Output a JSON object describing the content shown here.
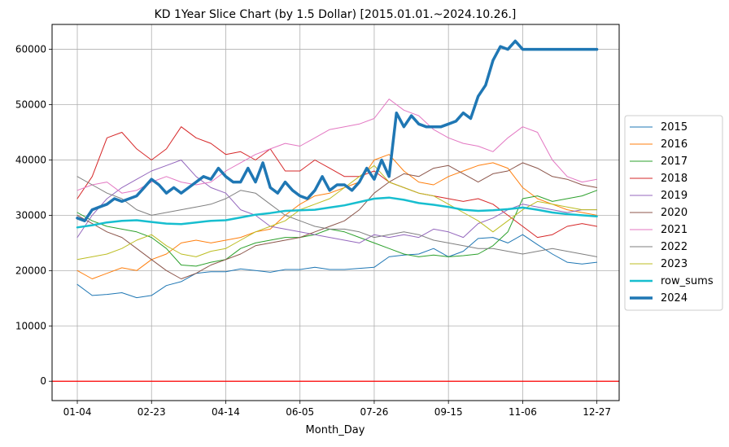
{
  "chart_data": {
    "type": "line",
    "title": "KD 1Year Slice Chart (by 1.5 Dollar) [2015.01.01.~2024.10.26.]",
    "xlabel": "Month_Day",
    "ylabel": "",
    "x_ticks": [
      "01-04",
      "02-23",
      "04-14",
      "06-05",
      "07-26",
      "09-15",
      "11-06",
      "12-27"
    ],
    "x_tick_positions": [
      0,
      50,
      100,
      150,
      200,
      250,
      300,
      350
    ],
    "xlim": [
      -17,
      365
    ],
    "ylim": [
      -3500,
      64500
    ],
    "y_ticks": [
      0,
      10000,
      20000,
      30000,
      40000,
      50000,
      60000
    ],
    "grid": true,
    "legend_position": "center-right",
    "reference_line": {
      "y": 0,
      "color": "#ff0000"
    },
    "series": [
      {
        "name": "2015",
        "color": "#1f77b4",
        "width": 1,
        "x": [
          0,
          10,
          20,
          30,
          40,
          50,
          60,
          70,
          80,
          90,
          100,
          110,
          120,
          130,
          140,
          150,
          160,
          170,
          180,
          190,
          200,
          210,
          220,
          230,
          240,
          250,
          260,
          270,
          280,
          290,
          300,
          310,
          320,
          330,
          340,
          350
        ],
        "values": [
          17500,
          15500,
          15700,
          16000,
          15100,
          15500,
          17300,
          18000,
          19500,
          19800,
          19800,
          20300,
          20000,
          19700,
          20200,
          20200,
          20600,
          20200,
          20200,
          20400,
          20600,
          22500,
          22800,
          23000,
          24000,
          22500,
          23500,
          25800,
          26000,
          25000,
          26500,
          24700,
          23000,
          21500,
          21200,
          21500
        ]
      },
      {
        "name": "2016",
        "color": "#ff7f0e",
        "width": 1,
        "x": [
          0,
          10,
          20,
          30,
          40,
          50,
          60,
          70,
          80,
          90,
          100,
          110,
          120,
          130,
          140,
          150,
          160,
          170,
          180,
          190,
          200,
          210,
          220,
          230,
          240,
          250,
          260,
          270,
          280,
          290,
          300,
          310,
          320,
          330,
          340,
          350
        ],
        "values": [
          20000,
          18500,
          19500,
          20500,
          20000,
          22000,
          23000,
          25000,
          25500,
          25000,
          25500,
          26000,
          27000,
          27500,
          30000,
          32000,
          33500,
          34000,
          35000,
          36000,
          40000,
          41000,
          38000,
          36000,
          35500,
          37000,
          38000,
          39000,
          39500,
          38500,
          35000,
          33000,
          32000,
          31000,
          30500,
          30000
        ]
      },
      {
        "name": "2017",
        "color": "#2ca02c",
        "width": 1,
        "x": [
          0,
          10,
          20,
          30,
          40,
          50,
          60,
          70,
          80,
          90,
          100,
          110,
          120,
          130,
          140,
          150,
          160,
          170,
          180,
          190,
          200,
          210,
          220,
          230,
          240,
          250,
          260,
          270,
          280,
          290,
          300,
          310,
          320,
          330,
          340,
          350
        ],
        "values": [
          30500,
          29000,
          28000,
          27500,
          27000,
          26000,
          24000,
          21000,
          20800,
          21500,
          22000,
          24000,
          25000,
          25500,
          26000,
          26000,
          26500,
          27500,
          27000,
          26000,
          25000,
          24000,
          23000,
          22500,
          22800,
          22500,
          22700,
          23000,
          24500,
          27000,
          33000,
          33500,
          32500,
          33000,
          33500,
          34500
        ]
      },
      {
        "name": "2018",
        "color": "#d62728",
        "width": 1,
        "x": [
          0,
          10,
          20,
          30,
          40,
          50,
          60,
          70,
          80,
          90,
          100,
          110,
          120,
          130,
          140,
          150,
          160,
          170,
          180,
          190,
          200,
          210,
          220,
          230,
          240,
          250,
          260,
          270,
          280,
          290,
          300,
          310,
          320,
          330,
          340,
          350
        ],
        "values": [
          33000,
          37000,
          44000,
          45000,
          42000,
          40000,
          42000,
          46000,
          44000,
          43000,
          41000,
          41500,
          40000,
          42000,
          38000,
          38000,
          40000,
          38500,
          37000,
          37000,
          38000,
          36000,
          35000,
          34000,
          33500,
          33000,
          32500,
          33000,
          32000,
          30000,
          28000,
          26000,
          26500,
          28000,
          28500,
          28000
        ]
      },
      {
        "name": "2019",
        "color": "#9467bd",
        "width": 1,
        "x": [
          0,
          10,
          20,
          30,
          40,
          50,
          60,
          70,
          80,
          90,
          100,
          110,
          120,
          130,
          140,
          150,
          160,
          170,
          180,
          190,
          200,
          210,
          220,
          230,
          240,
          250,
          260,
          270,
          280,
          290,
          300,
          310,
          320,
          330,
          340,
          350
        ],
        "values": [
          26000,
          30000,
          33000,
          35000,
          36500,
          38000,
          39000,
          40000,
          37000,
          35000,
          34000,
          31000,
          30000,
          28000,
          27500,
          27000,
          26500,
          26000,
          25500,
          25000,
          26500,
          26000,
          26500,
          26000,
          27500,
          27000,
          26000,
          28500,
          29500,
          31000,
          32000,
          31500,
          31000,
          30500,
          31000,
          31000
        ]
      },
      {
        "name": "2020",
        "color": "#8c564b",
        "width": 1,
        "x": [
          0,
          10,
          20,
          30,
          40,
          50,
          60,
          70,
          80,
          90,
          100,
          110,
          120,
          130,
          140,
          150,
          160,
          170,
          180,
          190,
          200,
          210,
          220,
          230,
          240,
          250,
          260,
          270,
          280,
          290,
          300,
          310,
          320,
          330,
          340,
          350
        ],
        "values": [
          30000,
          28500,
          27000,
          26000,
          24000,
          22000,
          20000,
          18500,
          19500,
          21000,
          22000,
          23000,
          24500,
          25000,
          25500,
          26000,
          27000,
          28000,
          29000,
          31000,
          34000,
          36000,
          37500,
          37000,
          38500,
          39000,
          37500,
          36000,
          37500,
          38000,
          39500,
          38500,
          37000,
          36500,
          35500,
          35000
        ]
      },
      {
        "name": "2021",
        "color": "#e377c2",
        "width": 1,
        "x": [
          0,
          10,
          20,
          30,
          40,
          50,
          60,
          70,
          80,
          90,
          100,
          110,
          120,
          130,
          140,
          150,
          160,
          170,
          180,
          190,
          200,
          210,
          220,
          230,
          240,
          250,
          260,
          270,
          280,
          290,
          300,
          310,
          320,
          330,
          340,
          350
        ],
        "values": [
          34500,
          35500,
          36000,
          34000,
          34500,
          36000,
          37000,
          36000,
          35500,
          36000,
          38000,
          39500,
          41000,
          42000,
          43000,
          42500,
          44000,
          45500,
          46000,
          46500,
          47500,
          51000,
          49000,
          48000,
          45500,
          44000,
          43000,
          42500,
          41500,
          44000,
          46000,
          45000,
          40000,
          37000,
          36000,
          36500
        ]
      },
      {
        "name": "2022",
        "color": "#7f7f7f",
        "width": 1,
        "x": [
          0,
          10,
          20,
          30,
          40,
          50,
          60,
          70,
          80,
          90,
          100,
          110,
          120,
          130,
          140,
          150,
          160,
          170,
          180,
          190,
          200,
          210,
          220,
          230,
          240,
          250,
          260,
          270,
          280,
          290,
          300,
          310,
          320,
          330,
          340,
          350
        ],
        "values": [
          37000,
          35500,
          34000,
          33000,
          31000,
          30000,
          30500,
          31000,
          31500,
          32000,
          33000,
          34500,
          34000,
          32000,
          30000,
          29000,
          28000,
          27500,
          27500,
          27000,
          26000,
          26500,
          27000,
          26500,
          25500,
          25000,
          24500,
          24000,
          24000,
          23500,
          23000,
          23500,
          24000,
          23500,
          23000,
          22500
        ]
      },
      {
        "name": "2023",
        "color": "#bcbd22",
        "width": 1,
        "x": [
          0,
          10,
          20,
          30,
          40,
          50,
          60,
          70,
          80,
          90,
          100,
          110,
          120,
          130,
          140,
          150,
          160,
          170,
          180,
          190,
          200,
          210,
          220,
          230,
          240,
          250,
          260,
          270,
          280,
          290,
          300,
          310,
          320,
          330,
          340,
          350
        ],
        "values": [
          22000,
          22500,
          23000,
          24000,
          25500,
          26500,
          24500,
          23000,
          22500,
          23500,
          24000,
          25500,
          27000,
          28000,
          29000,
          31000,
          32000,
          33000,
          35000,
          37000,
          39000,
          36000,
          35000,
          34000,
          33500,
          32000,
          30500,
          29000,
          27000,
          29000,
          31000,
          32500,
          32000,
          31500,
          31000,
          31000
        ]
      },
      {
        "name": "row_sums",
        "color": "#17becf",
        "width": 2.5,
        "x": [
          0,
          10,
          20,
          30,
          40,
          50,
          60,
          70,
          80,
          90,
          100,
          110,
          120,
          130,
          140,
          150,
          160,
          170,
          180,
          190,
          200,
          210,
          220,
          230,
          240,
          250,
          260,
          270,
          280,
          290,
          300,
          310,
          320,
          330,
          340,
          350
        ],
        "values": [
          27800,
          28200,
          28700,
          29000,
          29100,
          28800,
          28500,
          28400,
          28700,
          29000,
          29100,
          29600,
          30100,
          30400,
          30800,
          30900,
          31000,
          31400,
          31800,
          32400,
          33000,
          33200,
          32800,
          32200,
          31900,
          31500,
          31000,
          30800,
          30900,
          31100,
          31400,
          31000,
          30500,
          30200,
          30000,
          29800
        ]
      },
      {
        "name": "2024",
        "color": "#1f77b4",
        "width": 3.5,
        "x": [
          0,
          5,
          10,
          15,
          20,
          25,
          30,
          35,
          40,
          45,
          50,
          55,
          60,
          65,
          70,
          75,
          80,
          85,
          90,
          95,
          100,
          105,
          110,
          115,
          120,
          125,
          130,
          135,
          140,
          145,
          150,
          155,
          160,
          165,
          170,
          175,
          180,
          185,
          190,
          195,
          200,
          205,
          210,
          215,
          220,
          225,
          230,
          235,
          240,
          245,
          250,
          255,
          260,
          265,
          270,
          275,
          280,
          285,
          290,
          295,
          300,
          310,
          320,
          330,
          340,
          350
        ],
        "values": [
          29500,
          29000,
          31000,
          31500,
          32000,
          33000,
          32500,
          33000,
          33500,
          35000,
          36500,
          35500,
          34000,
          35000,
          34000,
          35000,
          36000,
          37000,
          36500,
          38500,
          37000,
          36000,
          36000,
          38500,
          36000,
          39500,
          35000,
          34000,
          36000,
          34500,
          33500,
          33000,
          34500,
          37000,
          34500,
          35500,
          35500,
          34500,
          36000,
          38500,
          36500,
          40000,
          37000,
          48500,
          46000,
          48000,
          46500,
          46000,
          46000,
          46000,
          46500,
          47000,
          48500,
          47500,
          51500,
          53500,
          58000,
          60500,
          60000,
          61500,
          60000,
          60000,
          60000,
          60000,
          60000,
          60000
        ]
      }
    ]
  }
}
